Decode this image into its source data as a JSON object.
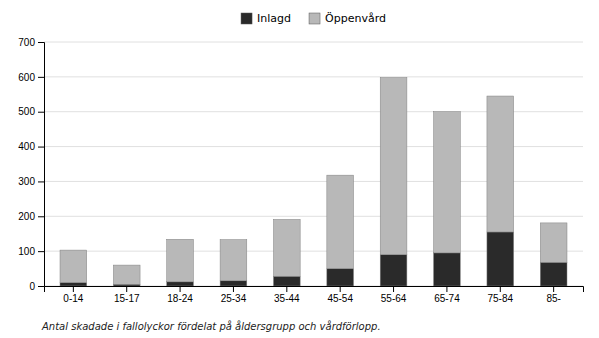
{
  "chart_data": {
    "type": "bar",
    "stacked": true,
    "caption": "Antal skadade i fallolyckor fördelat på åldersgrupp och vårdförlopp.",
    "categories": [
      "0-14",
      "15-17",
      "18-24",
      "25-34",
      "35-44",
      "45-54",
      "55-64",
      "65-74",
      "75-84",
      "85-"
    ],
    "series": [
      {
        "name": "Inlagd",
        "color": "#2a2a2a",
        "values": [
          10,
          5,
          12,
          15,
          28,
          50,
          90,
          95,
          155,
          68
        ]
      },
      {
        "name": "Öppenvård",
        "color": "#b8b8b8",
        "values": [
          93,
          55,
          122,
          118,
          163,
          268,
          508,
          405,
          390,
          113
        ]
      }
    ],
    "ylim": [
      0,
      700
    ],
    "yticks": [
      0,
      100,
      200,
      300,
      400,
      500,
      600,
      700
    ],
    "grid": true,
    "legend": "top"
  }
}
